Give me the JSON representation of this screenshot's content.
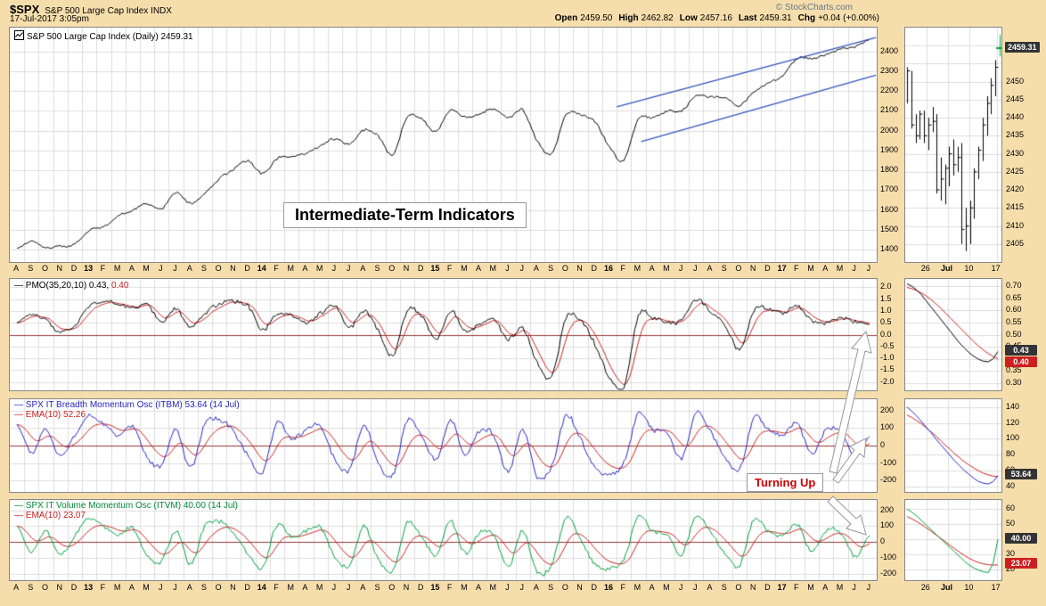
{
  "header": {
    "symbol": "$SPX",
    "name": "S&P 500 Large Cap Index INDX",
    "timestamp": "17-Jul-2017 3:05pm",
    "copyright": "© StockCharts.com",
    "quote": [
      {
        "label": "Open",
        "value": "2459.50"
      },
      {
        "label": "High",
        "value": "2462.82"
      },
      {
        "label": "Low",
        "value": "2457.16"
      },
      {
        "label": "Last",
        "value": "2459.31"
      },
      {
        "label": "Chg",
        "value": "+0.04 (+0.00%)"
      }
    ]
  },
  "annotations": {
    "title_box": "Intermediate-Term Indicators",
    "turning_up": "Turning Up",
    "arrows": [
      "972,372 978,396 971,394 939,531 931,529 963,392 956,391",
      "972,492 970,513 965,509 941,542 935,538 959,505 954,501",
      "972,600 950,593 955,588 929,563 935,557 961,582 966,578"
    ]
  },
  "colors": {
    "bg": "#F6DEAC",
    "panel_border": "#888888",
    "grid": "#DCDCDC",
    "zero_line": "#993333",
    "price": "#000000",
    "ema": "#CC2020",
    "itbm": "#2626BF",
    "itvm": "#00A040",
    "trend": "#3355BB",
    "box_dark": "#333333",
    "box_red": "#CC2020",
    "annotation_red": "#CC0000",
    "up_green": "#00A040"
  },
  "chart_data": {
    "type": "line",
    "x_months": [
      "A",
      "S",
      "O",
      "N",
      "D",
      "13",
      "F",
      "M",
      "A",
      "M",
      "J",
      "J",
      "A",
      "S",
      "O",
      "N",
      "D",
      "14",
      "F",
      "M",
      "A",
      "M",
      "J",
      "J",
      "A",
      "S",
      "O",
      "N",
      "D",
      "15",
      "F",
      "M",
      "A",
      "M",
      "J",
      "J",
      "A",
      "S",
      "O",
      "N",
      "D",
      "16",
      "F",
      "M",
      "A",
      "M",
      "J",
      "J",
      "A",
      "S",
      "O",
      "N",
      "D",
      "17",
      "F",
      "M",
      "A",
      "M",
      "J",
      "J"
    ],
    "price": {
      "legend": "S&P 500 Large Cap Index (Daily) 2459.31",
      "last": 2459.31,
      "ylim": [
        1337,
        2520
      ],
      "yticks": [
        2400,
        2300,
        2200,
        2100,
        2000,
        1900,
        1800,
        1700,
        1600,
        1500,
        1400
      ],
      "line_color": "#000000",
      "values": [
        1406,
        1441,
        1412,
        1416,
        1426,
        1498,
        1515,
        1569,
        1598,
        1631,
        1606,
        1686,
        1633,
        1682,
        1757,
        1806,
        1848,
        1783,
        1859,
        1872,
        1884,
        1924,
        1960,
        1931,
        2003,
        1972,
        1880,
        2068,
        2059,
        1995,
        2105,
        2068,
        2086,
        2107,
        2063,
        2104,
        1950,
        1882,
        2079,
        2080,
        2044,
        1920,
        1850,
        2060,
        2065,
        2097,
        2099,
        2174,
        2171,
        2168,
        2126,
        2199,
        2239,
        2279,
        2364,
        2363,
        2384,
        2412,
        2423,
        2459.31
      ],
      "trendlines": [
        {
          "m1": 41.5,
          "v1": 2120,
          "m2": 59.9,
          "v2": 2470
        },
        {
          "m1": 43.2,
          "v1": 1945,
          "m2": 59.9,
          "v2": 2280
        }
      ]
    },
    "pmo": {
      "legend_main": "— PMO(35,20,10) 0.43,",
      "legend_ema": "0.40",
      "last": 0.43,
      "ema_last": 0.4,
      "ylim": [
        -2.35,
        2.35
      ],
      "yticks": [
        2.0,
        1.5,
        1.0,
        0.5,
        0.0,
        -0.5,
        -1.0,
        -1.5,
        -2.0
      ],
      "line_color": "#000000",
      "values": [
        0.5,
        0.9,
        0.6,
        0.1,
        0.4,
        1.2,
        1.4,
        1.3,
        1.1,
        1.3,
        0.5,
        1.1,
        0.3,
        0.9,
        1.3,
        1.4,
        1.2,
        0.2,
        0.9,
        0.8,
        0.5,
        0.9,
        1.2,
        0.3,
        1.0,
        0.2,
        -0.9,
        1.0,
        0.8,
        -0.2,
        1.0,
        0.2,
        0.4,
        0.6,
        -0.2,
        0.3,
        -1.2,
        -1.8,
        0.7,
        0.6,
        -0.4,
        -1.8,
        -2.2,
        0.8,
        0.7,
        0.5,
        0.6,
        1.5,
        1.0,
        0.4,
        -0.6,
        1.0,
        1.1,
        0.9,
        1.2,
        0.6,
        0.5,
        0.7,
        0.55,
        0.43
      ]
    },
    "itbm": {
      "legend1": "— SPX IT Breadth Momentum Osc (ITBM) 53.64 (14 Jul)",
      "legend2": "— EMA(10) 52.26",
      "last": 53.64,
      "ema_last": 52.26,
      "ylim": [
        -265,
        265
      ],
      "yticks": [
        200,
        100,
        0,
        -100,
        -200
      ],
      "line_color": "#2626BF",
      "values": [
        120,
        -40,
        90,
        -60,
        60,
        170,
        120,
        60,
        110,
        -70,
        -110,
        90,
        -130,
        120,
        150,
        80,
        -60,
        -150,
        130,
        40,
        90,
        110,
        -80,
        -140,
        120,
        -100,
        -170,
        140,
        60,
        -80,
        150,
        -60,
        80,
        60,
        -150,
        90,
        -180,
        -120,
        170,
        40,
        -130,
        -160,
        -100,
        180,
        90,
        70,
        -70,
        190,
        80,
        -60,
        -140,
        160,
        90,
        60,
        130,
        -50,
        90,
        80,
        -60,
        53.64
      ]
    },
    "itvm": {
      "legend1": "— SPX IT Volume Momentum Osc (ITVM) 40.00 (14 Jul)",
      "legend2": "— EMA(10) 23.07",
      "last": 40.0,
      "ema_last": 23.07,
      "ylim": [
        -240,
        265
      ],
      "yticks": [
        200,
        100,
        0,
        -100,
        -200
      ],
      "line_color": "#00A040",
      "values": [
        100,
        -60,
        70,
        -80,
        40,
        150,
        100,
        40,
        90,
        -90,
        -120,
        70,
        -140,
        100,
        130,
        60,
        -80,
        -160,
        110,
        30,
        70,
        90,
        -90,
        -150,
        100,
        -110,
        -180,
        120,
        40,
        -90,
        130,
        -70,
        60,
        40,
        -160,
        70,
        -190,
        -140,
        150,
        20,
        -140,
        -170,
        -110,
        160,
        70,
        50,
        -80,
        170,
        60,
        -70,
        -150,
        140,
        70,
        40,
        110,
        -60,
        70,
        60,
        -90,
        40.0
      ]
    },
    "mini_price": {
      "ylim": [
        2400,
        2465
      ],
      "yticks": [
        2450,
        2445,
        2440,
        2435,
        2430,
        2425,
        2420,
        2415,
        2410,
        2405
      ],
      "grid": [
        2405,
        2410,
        2415,
        2420,
        2425,
        2430,
        2435,
        2440,
        2445,
        2450,
        2455,
        2460
      ],
      "xlabels": [
        {
          "t": "26",
          "p": 0.22
        },
        {
          "t": "Jul",
          "p": 0.44
        },
        {
          "t": "10",
          "p": 0.67
        },
        {
          "t": "17",
          "p": 0.95
        }
      ],
      "boxes": [
        {
          "t": "2459.31",
          "v": 2459.31,
          "c": "dark"
        }
      ],
      "bars": [
        [
          2454,
          2444,
          2453
        ],
        [
          2453,
          2437,
          2438
        ],
        [
          2441,
          2433,
          2435
        ],
        [
          2442,
          2434,
          2441
        ],
        [
          2442,
          2433,
          2435
        ],
        [
          2440,
          2431,
          2438
        ],
        [
          2443,
          2436,
          2439
        ],
        [
          2441,
          2419,
          2420
        ],
        [
          2429,
          2417,
          2423
        ],
        [
          2427,
          2416,
          2426
        ],
        [
          2432,
          2421,
          2430
        ],
        [
          2434,
          2424,
          2427
        ],
        [
          2432,
          2425,
          2429
        ],
        [
          2433,
          2405,
          2409
        ],
        [
          2415,
          2403,
          2410
        ],
        [
          2417,
          2405,
          2415
        ],
        [
          2426,
          2412,
          2425
        ],
        [
          2432,
          2423,
          2431
        ],
        [
          2440,
          2428,
          2438
        ],
        [
          2446,
          2435,
          2444
        ],
        [
          2451,
          2441,
          2449
        ],
        [
          2456,
          2446,
          2454
        ],
        [
          2463,
          2457,
          2459.31
        ]
      ]
    },
    "mini_pmo": {
      "ylim": [
        0.27,
        0.73
      ],
      "yticks": [
        0.7,
        0.65,
        0.6,
        0.55,
        0.5,
        0.45,
        0.35,
        0.3
      ],
      "grid": [
        0.3,
        0.35,
        0.4,
        0.45,
        0.5,
        0.55,
        0.6,
        0.65,
        0.7
      ],
      "line_color": "#000000",
      "boxes": [
        {
          "t": "0.43",
          "v": 0.43,
          "c": "dark"
        },
        {
          "t": "0.40",
          "v": 0.4,
          "c": "red"
        }
      ],
      "line": [
        0.71,
        0.7,
        0.685,
        0.665,
        0.64,
        0.615,
        0.59,
        0.565,
        0.54,
        0.515,
        0.49,
        0.465,
        0.445,
        0.425,
        0.41,
        0.398,
        0.39,
        0.388,
        0.4,
        0.43
      ],
      "ema": [
        0.695,
        0.69,
        0.682,
        0.672,
        0.66,
        0.645,
        0.628,
        0.61,
        0.59,
        0.57,
        0.55,
        0.53,
        0.51,
        0.49,
        0.47,
        0.452,
        0.436,
        0.422,
        0.41,
        0.4
      ]
    },
    "mini_itbm": {
      "ylim": [
        33,
        150
      ],
      "yticks": [
        140,
        120,
        100,
        80,
        60,
        40
      ],
      "grid": [
        40,
        60,
        80,
        100,
        120,
        140
      ],
      "line_color": "#2626BF",
      "boxes": [
        {
          "t": "53.64",
          "v": 53.64,
          "c": "dark"
        }
      ],
      "line": [
        140,
        135,
        129,
        122,
        115,
        108,
        100,
        93,
        86,
        79,
        72,
        66,
        60,
        55,
        50,
        46,
        44,
        43,
        46,
        53.64
      ],
      "ema": [
        130,
        127,
        123,
        119,
        114,
        109,
        104,
        98,
        92,
        87,
        81,
        76,
        71,
        67,
        63,
        59.5,
        56.5,
        54.5,
        53,
        52.26
      ]
    },
    "mini_itvm": {
      "ylim": [
        13,
        66
      ],
      "yticks": [
        60,
        50,
        30,
        20
      ],
      "grid": [
        20,
        30,
        40,
        50,
        60
      ],
      "line_color": "#00A040",
      "boxes": [
        {
          "t": "40.00",
          "v": 40.0,
          "c": "dark"
        },
        {
          "t": "23.07",
          "v": 23.07,
          "c": "red"
        }
      ],
      "line": [
        60,
        58,
        55.5,
        52.5,
        49.5,
        46.5,
        43.5,
        40.5,
        37.5,
        34.5,
        31.5,
        28.5,
        25.5,
        23,
        21,
        19.5,
        18.5,
        18,
        24,
        40
      ],
      "ema": [
        55,
        53.5,
        51.8,
        49.8,
        47.6,
        45.4,
        43,
        40.7,
        38.4,
        36,
        33.7,
        31.5,
        29.3,
        27.4,
        25.8,
        24.6,
        23.8,
        23.2,
        23,
        23.07
      ]
    }
  }
}
